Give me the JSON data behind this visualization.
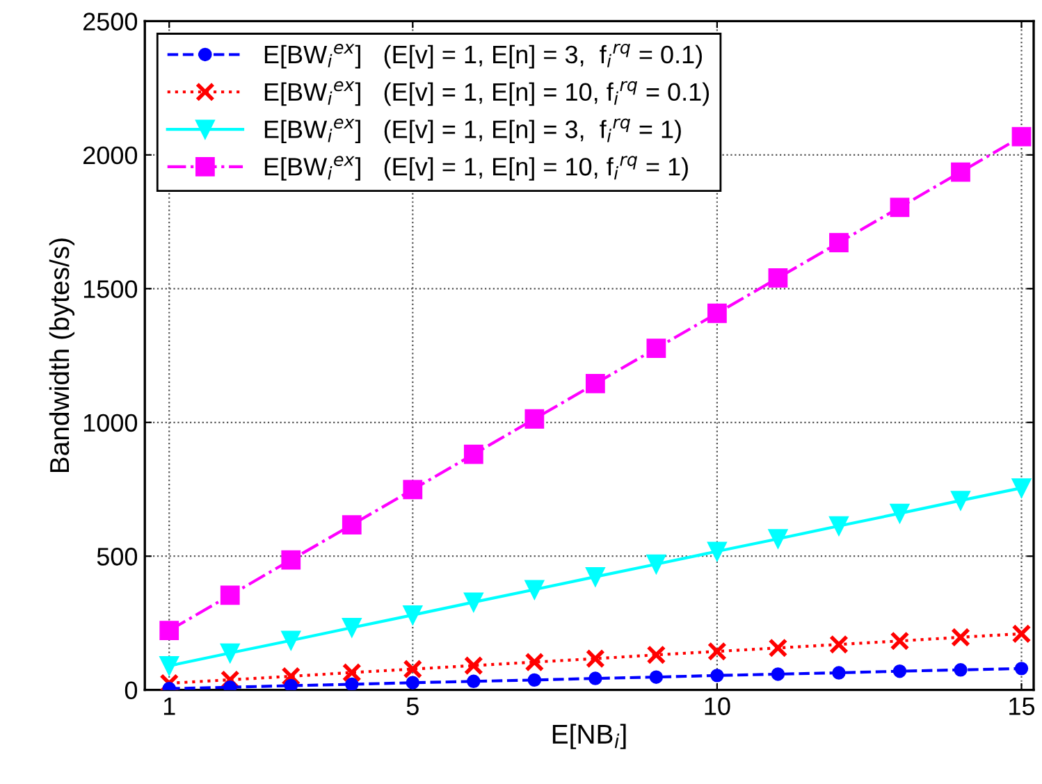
{
  "chart_data": {
    "type": "line",
    "xlabel": "E[NB$_{i}$]",
    "ylabel": "Bandwidth (bytes/s)",
    "x": [
      1,
      2,
      3,
      4,
      5,
      6,
      7,
      8,
      9,
      10,
      11,
      12,
      13,
      14,
      15
    ],
    "xlim": [
      0.6,
      15.2
    ],
    "xticks": [
      1,
      5,
      10,
      15
    ],
    "ylim": [
      0,
      2500
    ],
    "yticks": [
      0,
      500,
      1000,
      1500,
      2000,
      2500
    ],
    "grid": true,
    "legend": "top left",
    "series": [
      {
        "name": "E[BW$_{i}$$^{ex}$]   (E[v] = 1, E[n] = 3,  f$_{i}$$^{rq}$ = 0.1)",
        "color": "#0000ff",
        "marker": "circle",
        "line_style": "dashed",
        "values": [
          5,
          10,
          16,
          21,
          27,
          32,
          37,
          43,
          48,
          54,
          59,
          64,
          70,
          75,
          80
        ]
      },
      {
        "name": "E[BW$_{i}$$^{ex}$]   (E[v] = 1, E[n] = 10, f$_{i}$$^{rq}$ = 0.1)",
        "color": "#ff0000",
        "marker": "cross",
        "line_style": "dotted",
        "values": [
          25,
          38,
          51,
          65,
          78,
          91,
          104,
          117,
          131,
          144,
          157,
          170,
          183,
          197,
          210
        ]
      },
      {
        "name": "E[BW$_{i}$$^{ex}$]   (E[v] = 1, E[n] = 3,  f$_{i}$$^{rq}$ = 1)",
        "color": "#00ffff",
        "marker": "triangle",
        "line_style": "solid",
        "values": [
          90,
          138,
          185,
          233,
          280,
          328,
          375,
          423,
          470,
          518,
          565,
          613,
          660,
          708,
          755
        ]
      },
      {
        "name": "E[BW$_{i}$$^{ex}$]   (E[v] = 1, E[n] = 10, f$_{i}$$^{rq}$ = 1)",
        "color": "#ff00ff",
        "marker": "square",
        "line_style": "dashdot",
        "values": [
          222,
          354,
          486,
          617,
          749,
          881,
          1013,
          1145,
          1277,
          1408,
          1540,
          1672,
          1804,
          1936,
          2068
        ]
      }
    ]
  }
}
